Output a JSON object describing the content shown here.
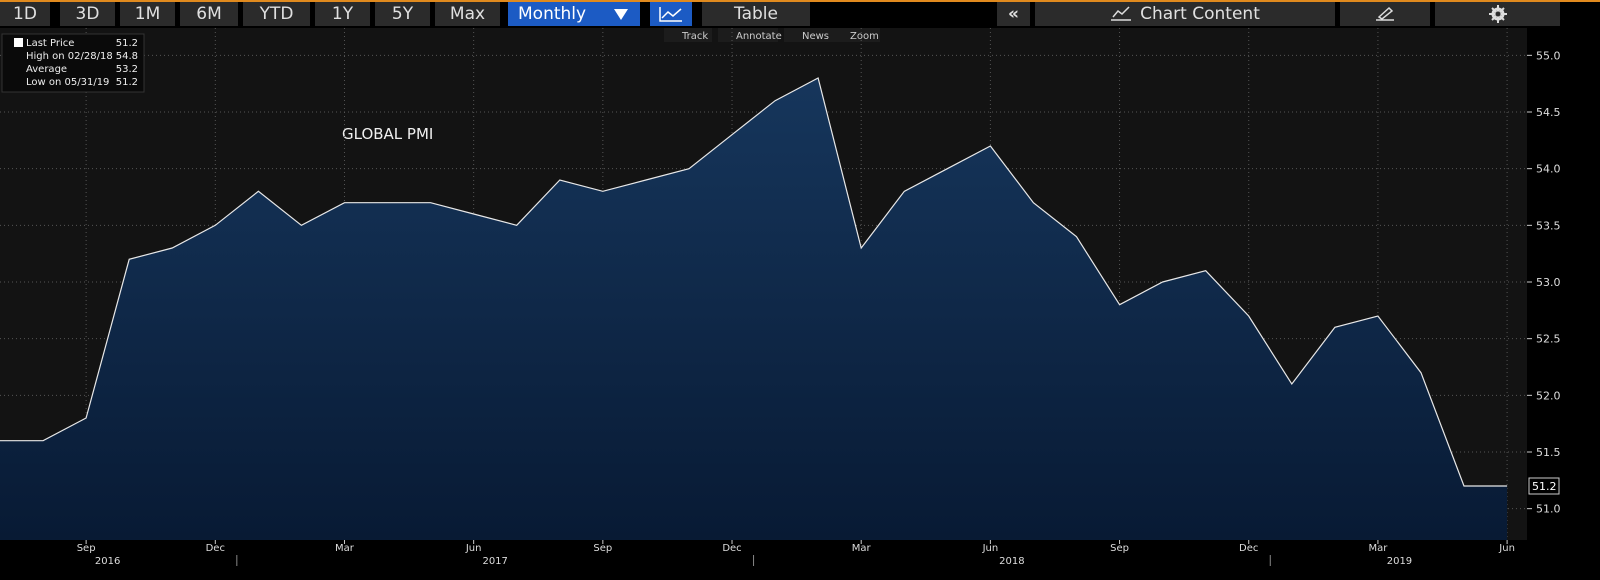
{
  "toolbar": {
    "ranges": [
      "1D",
      "3D",
      "1M",
      "6M",
      "YTD",
      "1Y",
      "5Y",
      "Max"
    ],
    "period": "Monthly",
    "table": "Table",
    "content": "Chart Content"
  },
  "tools": [
    "Track",
    "Annotate",
    "News",
    "Zoom"
  ],
  "chart_data": {
    "type": "area",
    "annotation": "GLOBAL PMI",
    "stats": [
      {
        "label": "Last Price",
        "value": 51.2
      },
      {
        "label": "High on 02/28/18",
        "value": 54.8
      },
      {
        "label": "Average",
        "value": 53.2
      },
      {
        "label": "Low on 05/31/19",
        "value": 51.2
      }
    ],
    "x": [
      "2016-07",
      "2016-08",
      "2016-09",
      "2016-10",
      "2016-11",
      "2016-12",
      "2017-01",
      "2017-02",
      "2017-03",
      "2017-04",
      "2017-05",
      "2017-06",
      "2017-07",
      "2017-08",
      "2017-09",
      "2017-10",
      "2017-11",
      "2017-12",
      "2018-01",
      "2018-02",
      "2018-03",
      "2018-04",
      "2018-05",
      "2018-06",
      "2018-07",
      "2018-08",
      "2018-09",
      "2018-10",
      "2018-11",
      "2018-12",
      "2019-01",
      "2019-02",
      "2019-03",
      "2019-04",
      "2019-05",
      "2019-06"
    ],
    "series": [
      {
        "name": "Last Price",
        "color": "#e8e8e8",
        "fill": "#16365c",
        "values": [
          51.6,
          51.6,
          51.8,
          53.2,
          53.3,
          53.5,
          53.8,
          53.5,
          53.7,
          53.7,
          53.7,
          53.6,
          53.5,
          53.9,
          53.8,
          53.9,
          54.0,
          54.3,
          54.6,
          54.8,
          53.3,
          53.8,
          54.0,
          54.2,
          53.7,
          53.4,
          52.8,
          53.0,
          53.1,
          52.7,
          52.1,
          52.6,
          52.7,
          52.2,
          51.2,
          51.2
        ]
      }
    ],
    "xticks": [
      {
        "value": "2016-09",
        "label": "Sep"
      },
      {
        "value": "2016-12",
        "label": "Dec"
      },
      {
        "value": "2017-03",
        "label": "Mar"
      },
      {
        "value": "2017-06",
        "label": "Jun"
      },
      {
        "value": "2017-09",
        "label": "Sep"
      },
      {
        "value": "2017-12",
        "label": "Dec"
      },
      {
        "value": "2018-03",
        "label": "Mar"
      },
      {
        "value": "2018-06",
        "label": "Jun"
      },
      {
        "value": "2018-09",
        "label": "Sep"
      },
      {
        "value": "2018-12",
        "label": "Dec"
      },
      {
        "value": "2019-03",
        "label": "Mar"
      },
      {
        "value": "2019-06",
        "label": "Jun"
      }
    ],
    "years": [
      "2016",
      "2017",
      "2018",
      "2019"
    ],
    "ylim": [
      50.9,
      55.1
    ],
    "yticks": [
      {
        "value": 51,
        "label": "51.0"
      },
      51.5,
      {
        "value": 52,
        "label": "52.0"
      },
      52.5,
      {
        "value": 53,
        "label": "53.0"
      },
      53.5,
      {
        "value": 54,
        "label": "54.0"
      },
      54.5,
      {
        "value": 55,
        "label": "55.0"
      }
    ],
    "grid": true
  }
}
